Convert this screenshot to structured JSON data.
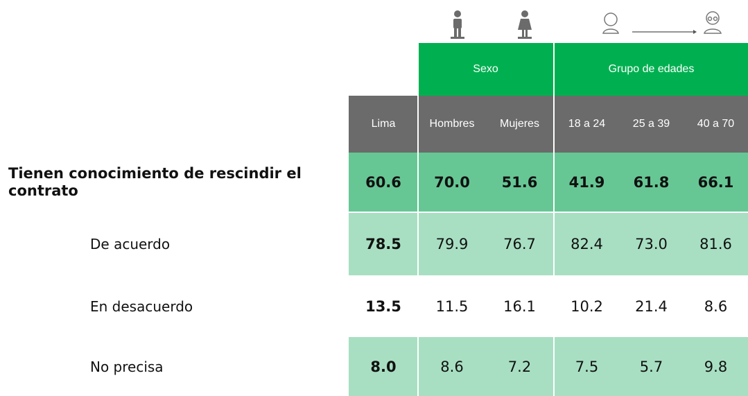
{
  "groups": [
    "Sexo",
    "Grupo de edades"
  ],
  "columns": [
    "Lima",
    "Hombres",
    "Mujeres",
    "18 a 24",
    "25 a 39",
    "40 a 70"
  ],
  "rows": [
    {
      "label": "Tienen conocimiento de rescindir el contrato",
      "values": [
        "60.6",
        "70.0",
        "51.6",
        "41.9",
        "61.8",
        "66.1"
      ]
    },
    {
      "label": "De acuerdo",
      "values": [
        "78.5",
        "79.9",
        "76.7",
        "82.4",
        "73.0",
        "81.6"
      ]
    },
    {
      "label": "En desacuerdo",
      "values": [
        "13.5",
        "11.5",
        "16.1",
        "10.2",
        "21.4",
        "8.6"
      ]
    },
    {
      "label": "No precisa",
      "values": [
        "8.0",
        "8.6",
        "7.2",
        "7.5",
        "5.7",
        "9.8"
      ]
    }
  ]
}
